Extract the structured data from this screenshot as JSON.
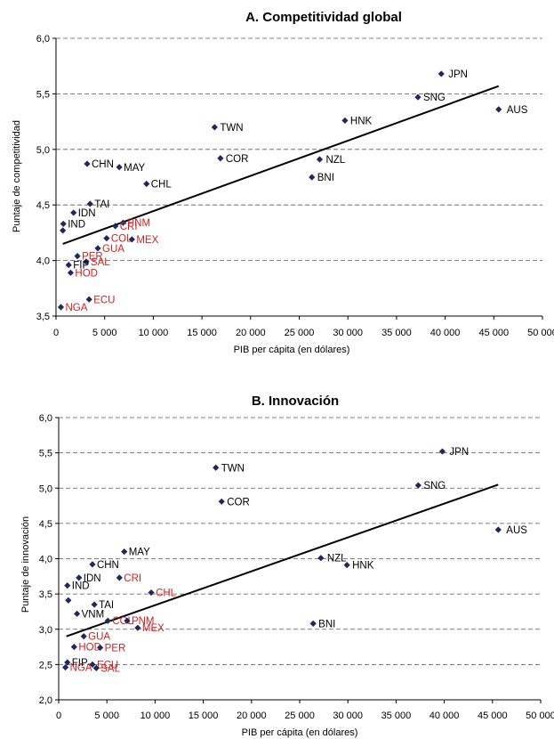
{
  "colors": {
    "marker": "#1f2a5c",
    "highlight": "#cc2222",
    "normal": "#000000"
  },
  "chart_data": [
    {
      "type": "scatter",
      "title": "A. Competitividad global",
      "xlabel": "PIB per cápita (en dólares)",
      "ylabel": "Puntaje de competitividad",
      "xlim": [
        0,
        50000
      ],
      "ylim": [
        3.5,
        6.0
      ],
      "xticks": [
        0,
        5000,
        10000,
        15000,
        20000,
        25000,
        30000,
        35000,
        40000,
        45000,
        50000
      ],
      "xtick_labels": [
        "0",
        "5 000",
        "10 000",
        "15 000",
        "20 000",
        "25 000",
        "30 000",
        "35 000",
        "40 000",
        "45 000",
        "50 000"
      ],
      "yticks": [
        3.5,
        4.0,
        4.5,
        5.0,
        5.5,
        6.0
      ],
      "ytick_labels": [
        "3,5",
        "4,0",
        "4,5",
        "5,0",
        "5,5",
        "6,0"
      ],
      "grid": "horizontal",
      "trendline": [
        [
          700,
          4.15
        ],
        [
          45500,
          5.57
        ]
      ],
      "points": [
        {
          "label": "JPN",
          "x": 39600,
          "y": 5.68,
          "highlight": false
        },
        {
          "label": "SNG",
          "x": 37200,
          "y": 5.47,
          "highlight": false
        },
        {
          "label": "AUS",
          "x": 45500,
          "y": 5.36,
          "highlight": false
        },
        {
          "label": "HNK",
          "x": 29700,
          "y": 5.26,
          "highlight": false
        },
        {
          "label": "TWN",
          "x": 16300,
          "y": 5.2,
          "highlight": false
        },
        {
          "label": "COR",
          "x": 16900,
          "y": 4.92,
          "highlight": false
        },
        {
          "label": "NZL",
          "x": 27100,
          "y": 4.91,
          "highlight": false
        },
        {
          "label": "BNI",
          "x": 26300,
          "y": 4.75,
          "highlight": false
        },
        {
          "label": "CHN",
          "x": 3200,
          "y": 4.87,
          "highlight": false
        },
        {
          "label": "MAY",
          "x": 6500,
          "y": 4.84,
          "highlight": false
        },
        {
          "label": "CHL",
          "x": 9300,
          "y": 4.69,
          "highlight": false
        },
        {
          "label": "TAI",
          "x": 3500,
          "y": 4.51,
          "highlight": false
        },
        {
          "label": "IDN",
          "x": 1800,
          "y": 4.43,
          "highlight": false
        },
        {
          "label": "IND",
          "x": 750,
          "y": 4.33,
          "highlight": false
        },
        {
          "label": "",
          "x": 700,
          "y": 4.27,
          "highlight": false
        },
        {
          "label": "PNM",
          "x": 6900,
          "y": 4.34,
          "highlight": true
        },
        {
          "label": "CRI",
          "x": 6100,
          "y": 4.31,
          "highlight": true
        },
        {
          "label": "COL",
          "x": 5200,
          "y": 4.2,
          "highlight": true
        },
        {
          "label": "MEX",
          "x": 7800,
          "y": 4.19,
          "highlight": true
        },
        {
          "label": "GUA",
          "x": 4300,
          "y": 4.11,
          "highlight": true
        },
        {
          "label": "PER",
          "x": 2200,
          "y": 4.04,
          "highlight": true
        },
        {
          "label": "SAL",
          "x": 3100,
          "y": 3.99,
          "highlight": true
        },
        {
          "label": "FIP",
          "x": 1300,
          "y": 3.96,
          "highlight": false
        },
        {
          "label": "HOD",
          "x": 1500,
          "y": 3.89,
          "highlight": true
        },
        {
          "label": "ECU",
          "x": 3400,
          "y": 3.65,
          "highlight": true
        },
        {
          "label": "NGA",
          "x": 500,
          "y": 3.58,
          "highlight": true
        }
      ]
    },
    {
      "type": "scatter",
      "title": "B. Innovación",
      "xlabel": "PIB per cápita (en dólares)",
      "ylabel": "Puntaje de innovación",
      "xlim": [
        0,
        50000
      ],
      "ylim": [
        2.0,
        6.0
      ],
      "xticks": [
        0,
        5000,
        10000,
        15000,
        20000,
        25000,
        30000,
        35000,
        40000,
        45000,
        50000
      ],
      "xtick_labels": [
        "0",
        "5 000",
        "10 000",
        "15 000",
        "20 000",
        "25 000",
        "30 000",
        "35 000",
        "40 000",
        "45 000",
        "50 000"
      ],
      "yticks": [
        2.0,
        2.5,
        3.0,
        3.5,
        4.0,
        4.5,
        5.0,
        5.5,
        6.0
      ],
      "ytick_labels": [
        "2,0",
        "2,5",
        "3,0",
        "3,5",
        "4,0",
        "4,5",
        "5,0",
        "5,5",
        "6,0"
      ],
      "grid": "horizontal",
      "trendline": [
        [
          800,
          2.9
        ],
        [
          45600,
          5.05
        ]
      ],
      "points": [
        {
          "label": "JPN",
          "x": 39800,
          "y": 5.52,
          "highlight": false
        },
        {
          "label": "TWN",
          "x": 16300,
          "y": 5.29,
          "highlight": false
        },
        {
          "label": "SNG",
          "x": 37300,
          "y": 5.04,
          "highlight": false
        },
        {
          "label": "COR",
          "x": 16900,
          "y": 4.81,
          "highlight": false
        },
        {
          "label": "AUS",
          "x": 45600,
          "y": 4.41,
          "highlight": false
        },
        {
          "label": "MAY",
          "x": 6800,
          "y": 4.1,
          "highlight": false
        },
        {
          "label": "NZL",
          "x": 27200,
          "y": 4.01,
          "highlight": false
        },
        {
          "label": "HNK",
          "x": 29900,
          "y": 3.91,
          "highlight": false
        },
        {
          "label": "CHN",
          "x": 3500,
          "y": 3.92,
          "highlight": false
        },
        {
          "label": "IDN",
          "x": 2100,
          "y": 3.73,
          "highlight": false
        },
        {
          "label": "CRI",
          "x": 6300,
          "y": 3.73,
          "highlight": true
        },
        {
          "label": "IND",
          "x": 900,
          "y": 3.62,
          "highlight": false
        },
        {
          "label": "CHL",
          "x": 9600,
          "y": 3.52,
          "highlight": true
        },
        {
          "label": "",
          "x": 1000,
          "y": 3.41,
          "highlight": false
        },
        {
          "label": "TAI",
          "x": 3700,
          "y": 3.35,
          "highlight": false
        },
        {
          "label": "VNM",
          "x": 1900,
          "y": 3.22,
          "highlight": false
        },
        {
          "label": "COL",
          "x": 5100,
          "y": 3.12,
          "highlight": true
        },
        {
          "label": "PNM",
          "x": 7100,
          "y": 3.12,
          "highlight": true
        },
        {
          "label": "BNI",
          "x": 26400,
          "y": 3.08,
          "highlight": false
        },
        {
          "label": "MEX",
          "x": 8200,
          "y": 3.02,
          "highlight": true
        },
        {
          "label": "GUA",
          "x": 2600,
          "y": 2.9,
          "highlight": true
        },
        {
          "label": "HOD",
          "x": 1600,
          "y": 2.75,
          "highlight": true
        },
        {
          "label": "PER",
          "x": 4300,
          "y": 2.74,
          "highlight": true
        },
        {
          "label": "FIP",
          "x": 900,
          "y": 2.53,
          "highlight": false
        },
        {
          "label": "ECU",
          "x": 3500,
          "y": 2.5,
          "highlight": true
        },
        {
          "label": "SAL",
          "x": 3900,
          "y": 2.45,
          "highlight": true
        },
        {
          "label": "NGA",
          "x": 700,
          "y": 2.46,
          "highlight": true
        }
      ]
    }
  ]
}
